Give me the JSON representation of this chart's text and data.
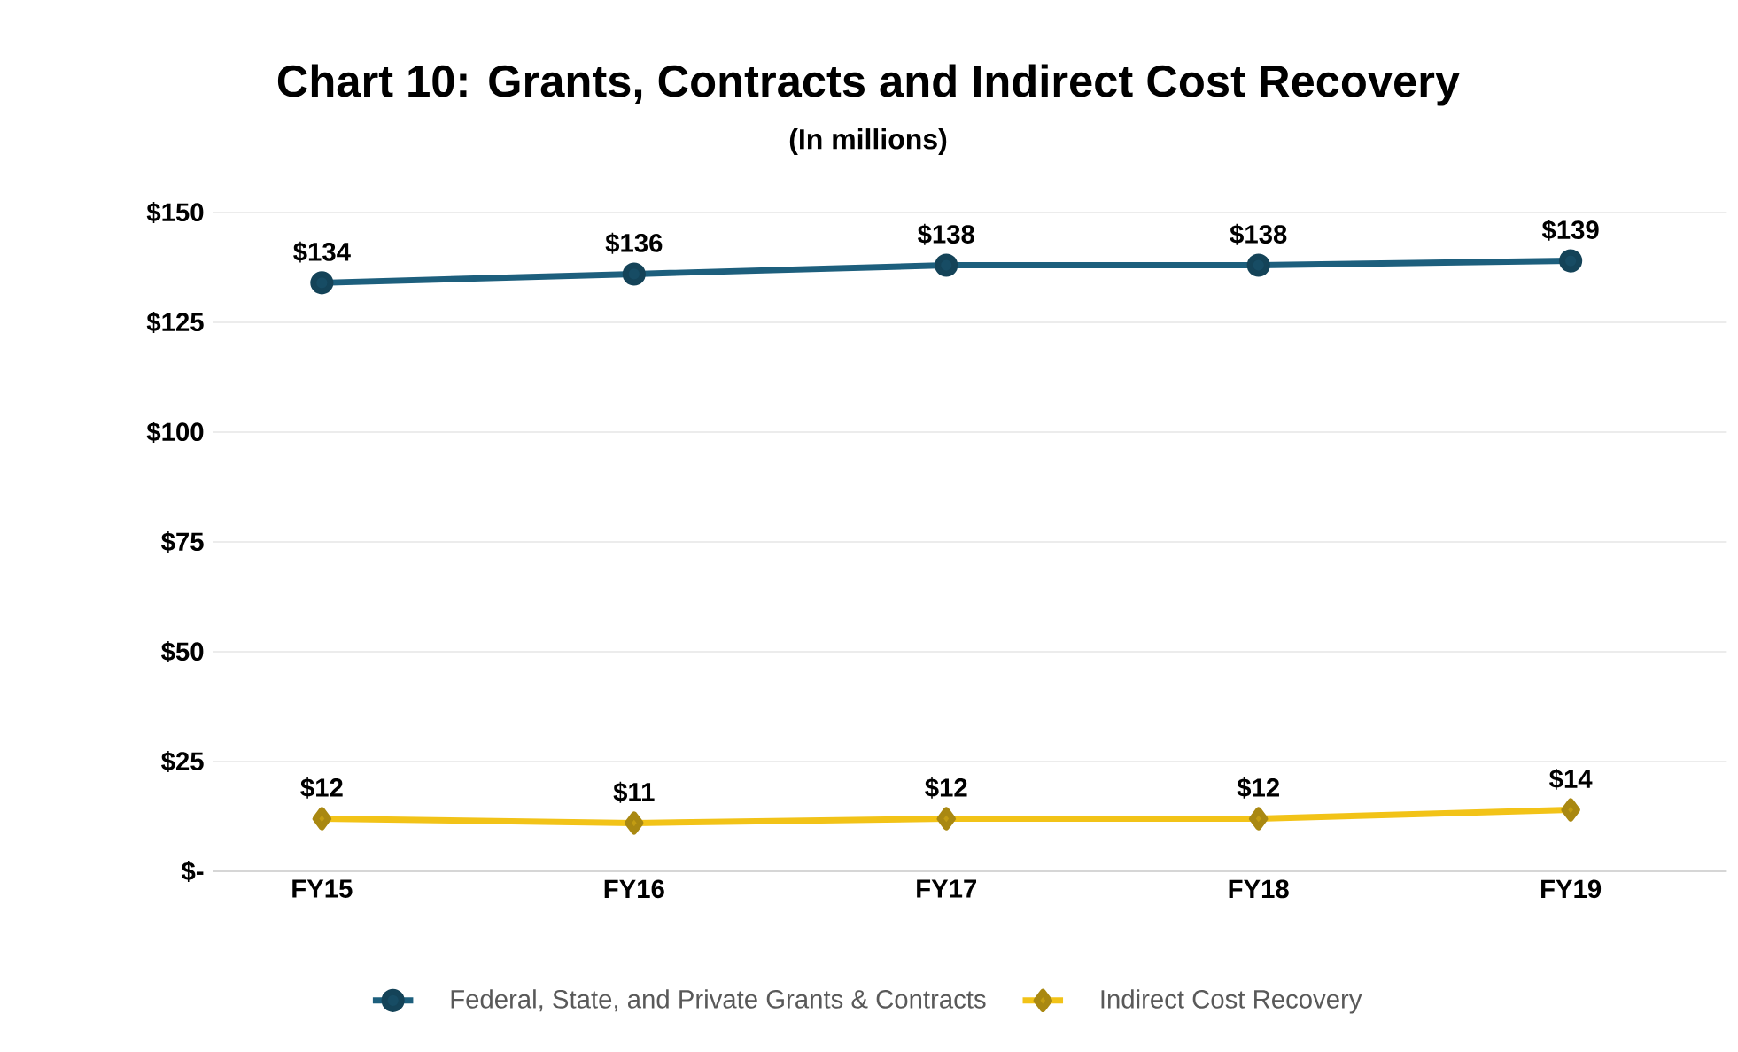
{
  "chart_data": {
    "type": "line",
    "title": "Chart 10: Grants, Contracts and Indirect Cost Recovery",
    "subtitle": "(In millions)",
    "categories": [
      "FY15",
      "FY16",
      "FY17",
      "FY18",
      "FY19"
    ],
    "series": [
      {
        "name": "Federal, State, and Private Grants & Contracts",
        "color": "#1d5f7d",
        "marker": "circle",
        "values": [
          134,
          136,
          138,
          138,
          139
        ],
        "value_labels": [
          "$134",
          "$136",
          "$138",
          "$138",
          "$139"
        ]
      },
      {
        "name": "Indirect Cost Recovery",
        "color": "#f2c318",
        "marker": "diamond",
        "values": [
          12,
          11,
          12,
          12,
          14
        ],
        "value_labels": [
          "$12",
          "$11",
          "$12",
          "$12",
          "$14"
        ]
      }
    ],
    "ylim": [
      0,
      150
    ],
    "yticks": [
      {
        "value": 0,
        "label": "$-"
      },
      {
        "value": 25,
        "label": "$25"
      },
      {
        "value": 50,
        "label": "$50"
      },
      {
        "value": 75,
        "label": "$75"
      },
      {
        "value": 100,
        "label": "$100"
      },
      {
        "value": 125,
        "label": "$125"
      },
      {
        "value": 150,
        "label": "$150"
      }
    ],
    "grid": "y",
    "legend": "bottom",
    "line_style": "solid"
  }
}
